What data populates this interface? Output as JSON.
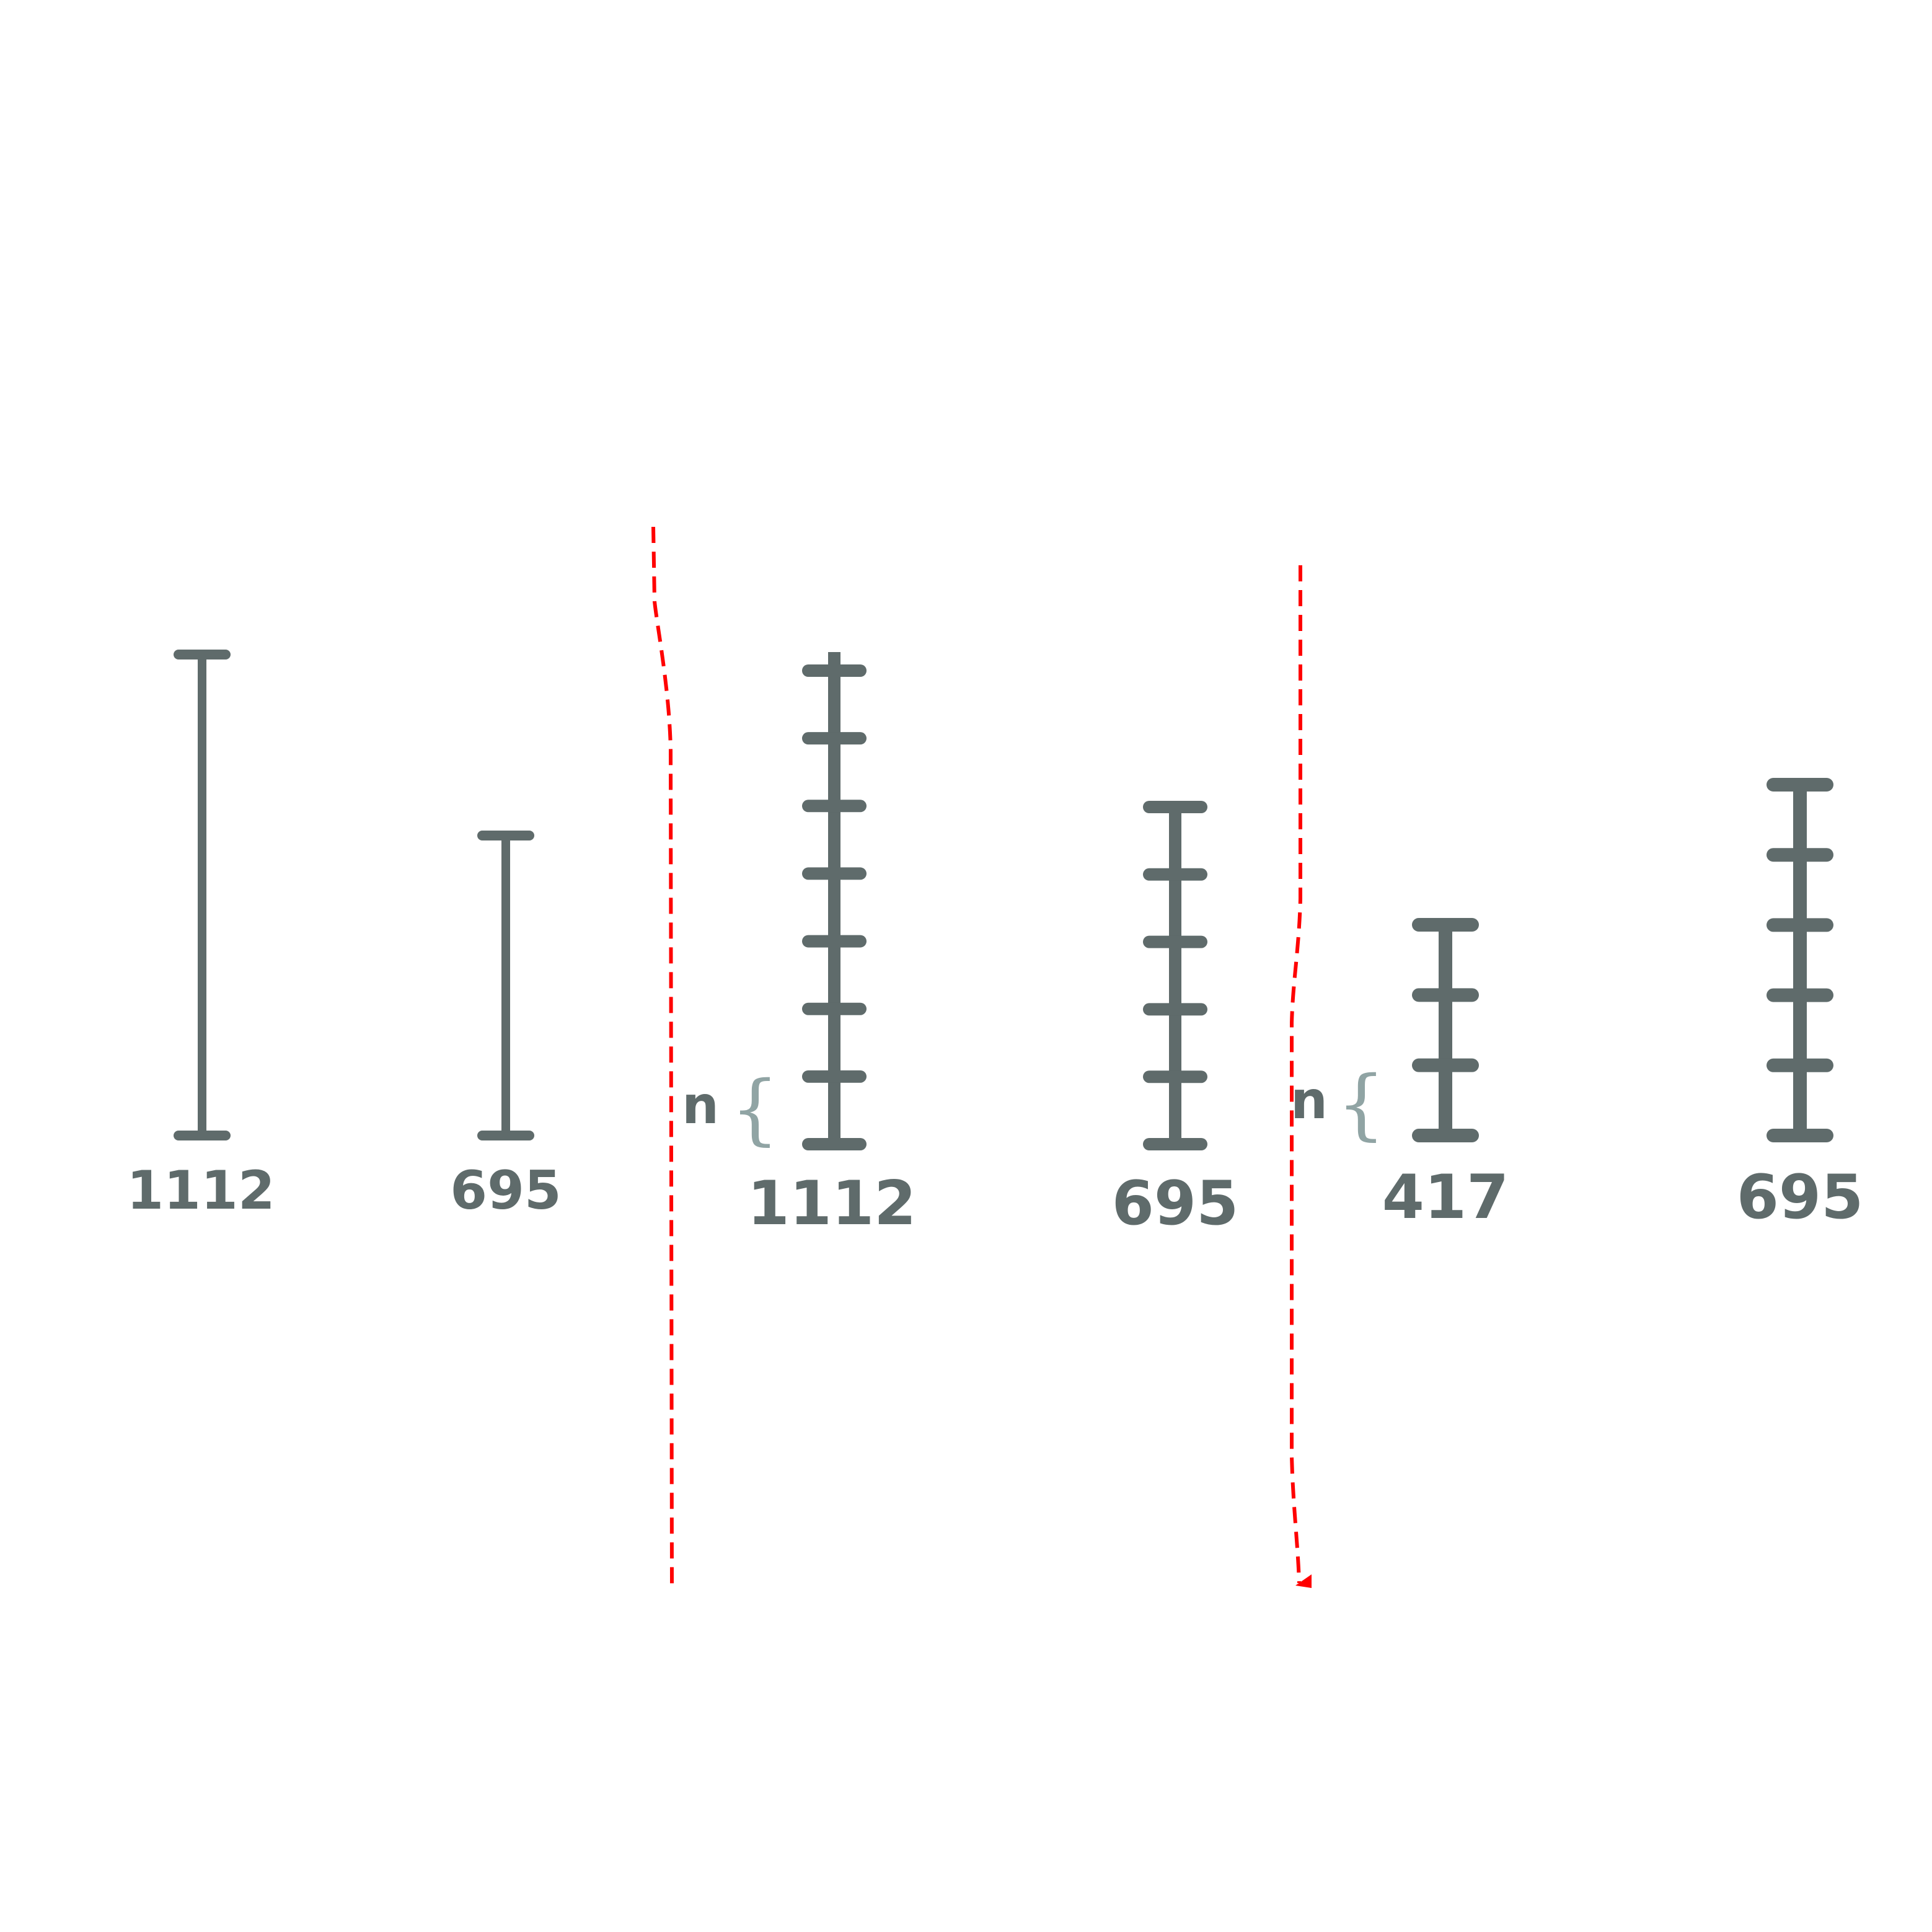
{
  "colors": {
    "ruler": "#5f6b6b",
    "label": "#5f6b6b",
    "brace": "#90a4a4",
    "divider": "#ff0000",
    "background": "#ffffff"
  },
  "rulers": [
    {
      "label": "1112",
      "segments": 1
    },
    {
      "label": "695",
      "segments": 1
    },
    {
      "label": "1112",
      "segments": 7,
      "brace_label": "n"
    },
    {
      "label": "695",
      "segments": 5
    },
    {
      "label": "417",
      "segments": 3,
      "brace_label": "n"
    },
    {
      "label": "695",
      "segments": 5
    }
  ]
}
